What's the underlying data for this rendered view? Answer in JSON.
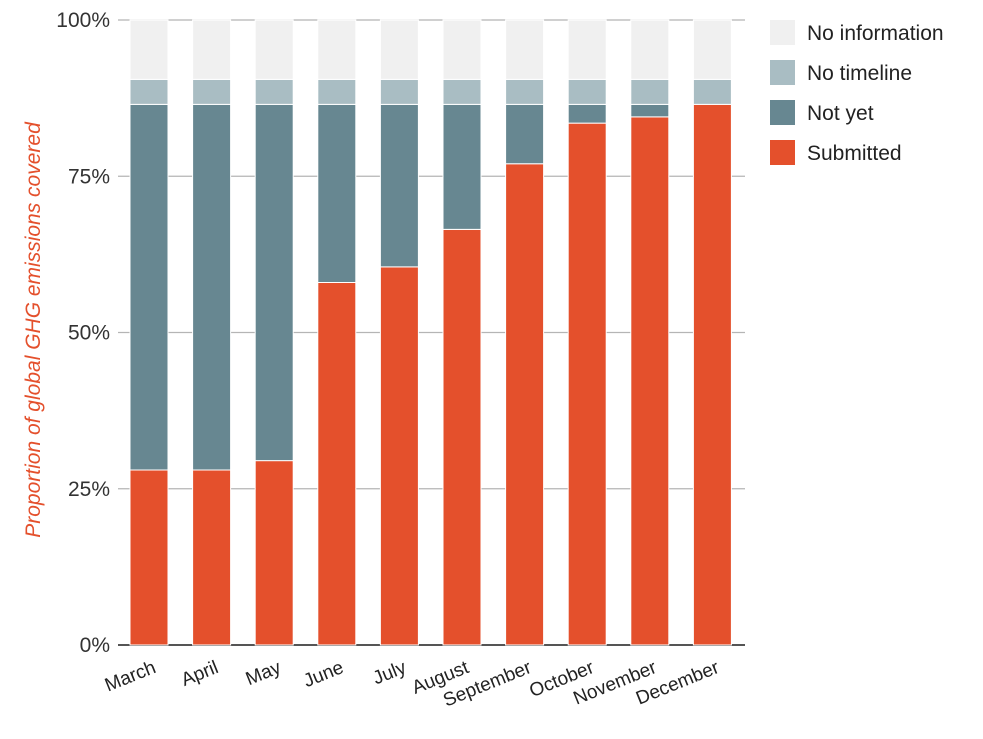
{
  "chart_data": {
    "type": "bar",
    "stacked": true,
    "title": "",
    "xlabel": "",
    "ylabel": "Proportion of global GHG emissions covered",
    "ylim": [
      0,
      100
    ],
    "yticks": [
      "0%",
      "25%",
      "50%",
      "75%",
      "100%"
    ],
    "ytick_values": [
      0,
      25,
      50,
      75,
      100
    ],
    "grid": true,
    "legend_position": "top-right",
    "categories": [
      "March",
      "April",
      "May",
      "June",
      "July",
      "August",
      "September",
      "October",
      "November",
      "December"
    ],
    "series": [
      {
        "name": "Submitted",
        "color": "#e4502c",
        "values": [
          28,
          28,
          29.5,
          58,
          60.5,
          66.5,
          77,
          83.5,
          84.5,
          86.5
        ]
      },
      {
        "name": "Not yet",
        "color": "#678791",
        "values": [
          58.5,
          58.5,
          57,
          28.5,
          26,
          20,
          9.5,
          3,
          2,
          0
        ]
      },
      {
        "name": "No timeline",
        "color": "#a9bdc3",
        "values": [
          4,
          4,
          4,
          4,
          4,
          4,
          4,
          4,
          4,
          4
        ]
      },
      {
        "name": "No information",
        "color": "#f0f0f0",
        "values": [
          9.5,
          9.5,
          9.5,
          9.5,
          9.5,
          9.5,
          9.5,
          9.5,
          9.5,
          9.5
        ]
      }
    ],
    "legend_order": [
      "No information",
      "No timeline",
      "Not yet",
      "Submitted"
    ],
    "ylabel_color": "#e4502c"
  }
}
